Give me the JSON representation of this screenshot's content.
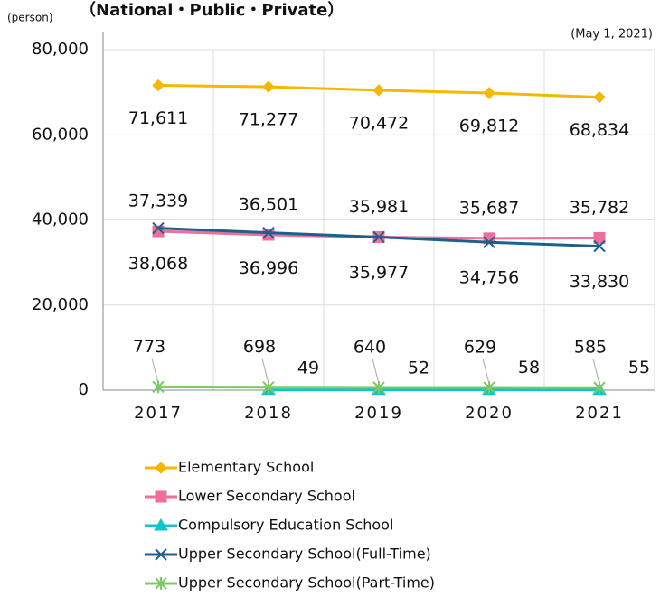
{
  "chart_data": {
    "type": "line",
    "title": "（National・Public・Private）",
    "y_label": "(person)",
    "annotation": "(May 1, 2021)",
    "categories": [
      "2017",
      "2018",
      "2019",
      "2020",
      "2021"
    ],
    "series": [
      {
        "name": "Elementary School",
        "color": "#f5b800",
        "marker": "diamond",
        "values": [
          71611,
          71277,
          70472,
          69812,
          68834
        ],
        "value_labels": [
          "71,611",
          "71,277",
          "70,472",
          "69,812",
          "68,834"
        ]
      },
      {
        "name": "Lower Secondary School",
        "color": "#f06e9c",
        "marker": "square",
        "values": [
          37339,
          36501,
          35981,
          35687,
          35782
        ],
        "value_labels": [
          "37,339",
          "36,501",
          "35,981",
          "35,687",
          "35,782"
        ]
      },
      {
        "name": "Compulsory Education School",
        "color": "#10c4cc",
        "marker": "triangle",
        "values": [
          null,
          49,
          52,
          58,
          55
        ]
      },
      {
        "name": "Upper Secondary School(Full-Time)",
        "color": "#1f5f8b",
        "marker": "x",
        "values": [
          38068,
          36996,
          35977,
          34756,
          33830
        ],
        "value_labels": [
          "38,068",
          "36,996",
          "35,977",
          "34,756",
          "33,830"
        ]
      },
      {
        "name": "Upper Secondary School(Part-Time)",
        "color": "#7dc966",
        "marker": "star",
        "values": [
          773,
          698,
          640,
          629,
          585
        ]
      }
    ],
    "ylim": [
      0,
      80000
    ],
    "yticks": [
      0,
      {
        "value": 20000,
        "label": "20,000"
      },
      {
        "value": 40000,
        "label": "40,000"
      },
      {
        "value": 60000,
        "label": "60,000"
      },
      {
        "value": 80000,
        "label": "80,000"
      }
    ],
    "grid": true
  }
}
